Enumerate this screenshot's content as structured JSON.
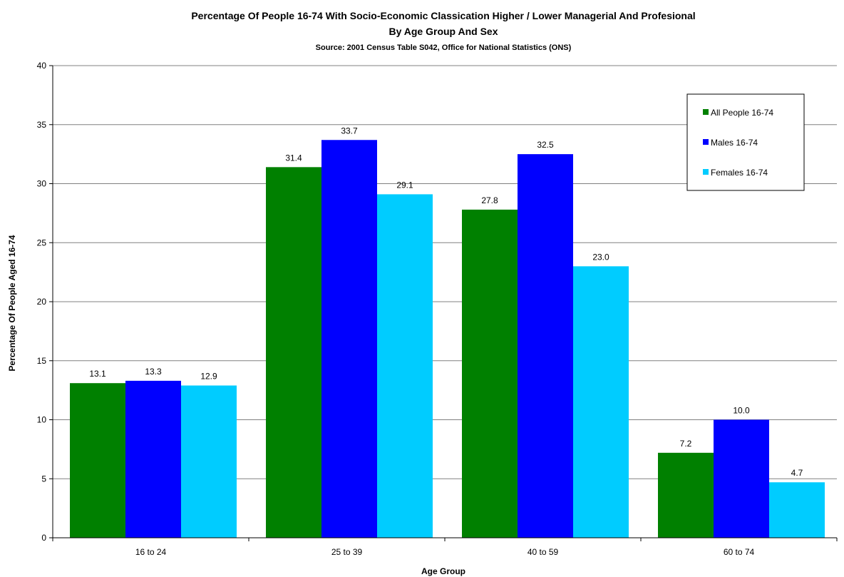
{
  "chart_data": {
    "type": "bar",
    "title": "Percentage Of People 16-74 With Socio-Economic Classication Higher / Lower Managerial And Profesional",
    "title_line2": "By Age Group And Sex",
    "subtitle": "Source: 2001 Census Table S042, Office for National Statistics (ONS)",
    "xlabel": "Age Group",
    "ylabel": "Percentage Of People Aged 16-74",
    "categories": [
      "16 to 24",
      "25 to 39",
      "40 to 59",
      "60 to 74"
    ],
    "series": [
      {
        "name": "All People 16-74",
        "color": "#008000",
        "values": [
          13.1,
          31.4,
          27.8,
          7.2
        ]
      },
      {
        "name": "Males 16-74",
        "color": "#0000FF",
        "values": [
          13.3,
          33.7,
          32.5,
          10.0
        ]
      },
      {
        "name": "Females 16-74",
        "color": "#00CCFF",
        "values": [
          12.9,
          29.1,
          23.0,
          4.7
        ]
      }
    ],
    "ylim": [
      0,
      40
    ],
    "yticks": [
      0,
      5,
      10,
      15,
      20,
      25,
      30,
      35,
      40
    ],
    "grid": true,
    "legend_position": "top-right",
    "data_labels": true
  }
}
